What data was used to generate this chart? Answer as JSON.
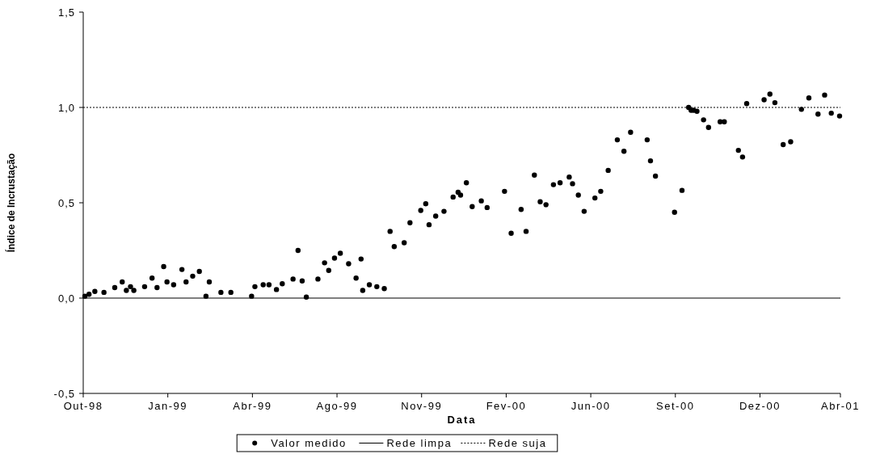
{
  "chart_data": {
    "type": "scatter",
    "xlabel": "Data",
    "ylabel": "Índice de Incrustação",
    "xlim": [
      "1998-10-01",
      "2001-04-01"
    ],
    "xticks": [
      {
        "value": "1998-10-01",
        "label": "Out-98"
      },
      {
        "value": "1999-01-11",
        "label": "Jan-99"
      },
      {
        "value": "1999-04-23",
        "label": "Abr-99"
      },
      {
        "value": "1999-08-03",
        "label": "Ago-99"
      },
      {
        "value": "1999-11-13",
        "label": "Nov-99"
      },
      {
        "value": "2000-02-23",
        "label": "Fev-00"
      },
      {
        "value": "2000-06-04",
        "label": "Jun-00"
      },
      {
        "value": "2000-09-14",
        "label": "Set-00"
      },
      {
        "value": "2000-12-25",
        "label": "Dez-00"
      },
      {
        "value": "2001-04-01",
        "label": "Abr-01"
      }
    ],
    "ylim": [
      -0.5,
      1.5
    ],
    "yticks": [
      {
        "value": -0.5,
        "label": "-0,5"
      },
      {
        "value": 0,
        "label": "0,0"
      },
      {
        "value": 0.5,
        "label": "0,5"
      },
      {
        "value": 1,
        "label": "1,0"
      },
      {
        "value": 1.5,
        "label": "1,5"
      }
    ],
    "grid": false,
    "legend": "bottom",
    "marker": "circle",
    "series": [
      {
        "name": "Valor medido",
        "color": "#000000",
        "x": [
          "1998-10-03",
          "1998-10-08",
          "1998-10-15",
          "1998-10-26",
          "1998-11-08",
          "1998-11-17",
          "1998-11-22",
          "1998-11-27",
          "1998-12-01",
          "1998-12-14",
          "1998-12-23",
          "1998-12-29",
          "1999-01-06",
          "1999-01-10",
          "1999-01-18",
          "1999-01-28",
          "1999-02-02",
          "1999-02-10",
          "1999-02-18",
          "1999-02-26",
          "1999-03-02",
          "1999-03-16",
          "1999-03-28",
          "1999-04-22",
          "1999-04-26",
          "1999-05-06",
          "1999-05-13",
          "1999-05-22",
          "1999-05-29",
          "1999-06-11",
          "1999-06-17",
          "1999-06-22",
          "1999-06-27",
          "1999-07-11",
          "1999-07-19",
          "1999-07-24",
          "1999-07-31",
          "1999-08-07",
          "1999-08-17",
          "1999-08-26",
          "1999-09-01",
          "1999-09-03",
          "1999-09-11",
          "1999-09-20",
          "1999-09-29",
          "1999-10-06",
          "1999-10-11",
          "1999-10-23",
          "1999-10-30",
          "1999-11-12",
          "1999-11-18",
          "1999-11-22",
          "1999-11-30",
          "1999-12-10",
          "1999-12-21",
          "1999-12-27",
          "1999-12-30",
          "2000-01-06",
          "2000-01-13",
          "2000-01-24",
          "2000-01-31",
          "2000-02-21",
          "2000-02-29",
          "2000-03-12",
          "2000-03-18",
          "2000-03-28",
          "2000-04-04",
          "2000-04-11",
          "2000-04-20",
          "2000-04-28",
          "2000-05-09",
          "2000-05-13",
          "2000-05-20",
          "2000-05-27",
          "2000-06-09",
          "2000-06-16",
          "2000-06-25",
          "2000-07-06",
          "2000-07-14",
          "2000-07-22",
          "2000-08-11",
          "2000-08-15",
          "2000-08-21",
          "2000-09-13",
          "2000-09-22",
          "2000-09-30",
          "2000-10-03",
          "2000-10-06",
          "2000-10-10",
          "2000-10-18",
          "2000-10-24",
          "2000-11-07",
          "2000-11-12",
          "2000-11-29",
          "2000-12-04",
          "2000-12-09",
          "2000-12-30",
          "2001-01-06",
          "2001-01-12",
          "2001-01-22",
          "2001-01-31",
          "2001-02-13",
          "2001-02-22",
          "2001-03-05",
          "2001-03-13",
          "2001-03-21",
          "2001-03-31"
        ],
        "values": [
          0.01,
          0.02,
          0.035,
          0.03,
          0.055,
          0.085,
          0.04,
          0.06,
          0.04,
          0.06,
          0.105,
          0.055,
          0.165,
          0.085,
          0.07,
          0.15,
          0.085,
          0.115,
          0.14,
          0.01,
          0.085,
          0.03,
          0.03,
          0.01,
          0.06,
          0.07,
          0.07,
          0.045,
          0.075,
          0.1,
          0.25,
          0.09,
          0.005,
          0.1,
          0.185,
          0.145,
          0.21,
          0.235,
          0.18,
          0.105,
          0.205,
          0.04,
          0.07,
          0.06,
          0.05,
          0.35,
          0.27,
          0.29,
          0.395,
          0.46,
          0.495,
          0.385,
          0.43,
          0.455,
          0.53,
          0.555,
          0.54,
          0.605,
          0.48,
          0.51,
          0.475,
          0.56,
          0.34,
          0.465,
          0.35,
          0.645,
          0.505,
          0.49,
          0.595,
          0.605,
          0.635,
          0.6,
          0.54,
          0.455,
          0.525,
          0.56,
          0.67,
          0.83,
          0.77,
          0.87,
          0.83,
          0.72,
          0.64,
          0.45,
          0.565,
          1.0,
          0.985,
          0.985,
          0.98,
          0.935,
          0.895,
          0.925,
          0.925,
          0.775,
          0.74,
          1.02,
          1.04,
          1.07,
          1.025,
          0.805,
          0.82,
          0.99,
          1.05,
          0.965,
          1.065,
          0.97,
          0.955
        ]
      }
    ],
    "ref_lines": [
      {
        "axis": "y",
        "value": 0,
        "label": "Rede limpa",
        "color": "#000000",
        "line_style": "solid"
      },
      {
        "axis": "y",
        "value": 1,
        "label": "Rede suja",
        "color": "#000000",
        "line_style": "dotted"
      }
    ]
  }
}
